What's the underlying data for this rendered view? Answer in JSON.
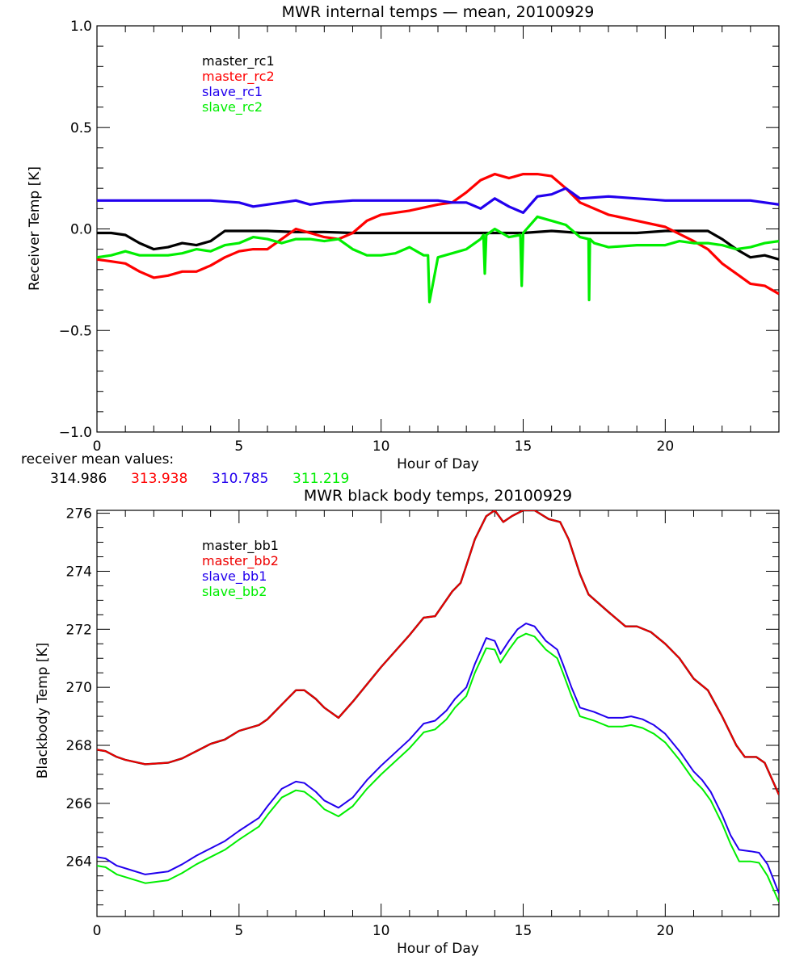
{
  "chart_data": [
    {
      "type": "line",
      "title": "MWR internal temps — mean, 20100929",
      "xlabel": "Hour of Day",
      "ylabel": "Receiver Temp [K]",
      "xlim": [
        0,
        24
      ],
      "ylim": [
        -1.0,
        1.0
      ],
      "xticks": [
        0,
        5,
        10,
        15,
        20
      ],
      "xtick_labels": [
        "0",
        "5",
        "10",
        "15",
        "20"
      ],
      "yticks": [
        -1.0,
        -0.5,
        0.0,
        0.5,
        1.0
      ],
      "ytick_labels": [
        "−1.0",
        "−0.5",
        "0.0",
        "0.5",
        "1.0"
      ],
      "grid": false,
      "legend_position": "top-left",
      "series": [
        {
          "name": "master_rc1",
          "color": "#000000",
          "x": [
            0,
            0.5,
            1,
            1.5,
            2,
            2.5,
            3,
            3.5,
            4,
            4.5,
            5,
            6,
            7,
            8,
            9,
            10,
            11,
            12,
            13,
            14,
            15,
            16,
            17,
            18,
            19,
            20,
            21,
            21.5,
            22,
            22.5,
            23,
            23.5,
            24
          ],
          "y": [
            -0.02,
            -0.02,
            -0.03,
            -0.07,
            -0.1,
            -0.09,
            -0.07,
            -0.08,
            -0.06,
            -0.01,
            -0.01,
            -0.01,
            -0.015,
            -0.015,
            -0.02,
            -0.02,
            -0.02,
            -0.02,
            -0.02,
            -0.02,
            -0.02,
            -0.01,
            -0.02,
            -0.02,
            -0.02,
            -0.01,
            -0.01,
            -0.01,
            -0.05,
            -0.1,
            -0.14,
            -0.13,
            -0.15
          ]
        },
        {
          "name": "master_rc2",
          "color": "#ff0000",
          "x": [
            0,
            0.5,
            1,
            1.5,
            2,
            2.5,
            3,
            3.5,
            4,
            4.5,
            5,
            5.5,
            6,
            6.5,
            7,
            7.5,
            8,
            8.5,
            9,
            9.5,
            10,
            11,
            12,
            12.5,
            13,
            13.5,
            14,
            14.5,
            15,
            15.5,
            16,
            16.5,
            17,
            18,
            19,
            20,
            21,
            21.5,
            22,
            22.5,
            23,
            23.5,
            24
          ],
          "y": [
            -0.15,
            -0.16,
            -0.17,
            -0.21,
            -0.24,
            -0.23,
            -0.21,
            -0.21,
            -0.18,
            -0.14,
            -0.11,
            -0.1,
            -0.1,
            -0.05,
            0.0,
            -0.02,
            -0.04,
            -0.05,
            -0.02,
            0.04,
            0.07,
            0.09,
            0.12,
            0.13,
            0.18,
            0.24,
            0.27,
            0.25,
            0.27,
            0.27,
            0.26,
            0.2,
            0.13,
            0.07,
            0.04,
            0.01,
            -0.06,
            -0.1,
            -0.17,
            -0.22,
            -0.27,
            -0.28,
            -0.32
          ]
        },
        {
          "name": "slave_rc1",
          "color": "#2200ee",
          "x": [
            0,
            1,
            2,
            3,
            4,
            5,
            5.5,
            6,
            7,
            7.5,
            8,
            9,
            10,
            11,
            12,
            12.5,
            13,
            13.5,
            14,
            14.5,
            15,
            15.5,
            16,
            16.5,
            17,
            18,
            19,
            20,
            21,
            22,
            23,
            24
          ],
          "y": [
            0.14,
            0.14,
            0.14,
            0.14,
            0.14,
            0.13,
            0.11,
            0.12,
            0.14,
            0.12,
            0.13,
            0.14,
            0.14,
            0.14,
            0.14,
            0.13,
            0.13,
            0.1,
            0.15,
            0.11,
            0.08,
            0.16,
            0.17,
            0.2,
            0.15,
            0.16,
            0.15,
            0.14,
            0.14,
            0.14,
            0.14,
            0.12
          ]
        },
        {
          "name": "slave_rc2",
          "color": "#00ee00",
          "x": [
            0,
            0.5,
            1,
            1.5,
            2,
            2.5,
            3,
            3.5,
            4,
            4.5,
            5,
            5.5,
            6,
            6.5,
            7,
            7.5,
            8,
            8.5,
            9,
            9.5,
            10,
            10.5,
            11,
            11.5,
            11.65,
            11.7,
            12,
            12.5,
            13,
            13.5,
            13.6,
            13.65,
            13.7,
            14,
            14.5,
            14.9,
            14.95,
            15.0,
            15.5,
            16,
            16.5,
            17,
            17.3,
            17.32,
            17.35,
            17.5,
            18,
            19,
            20,
            20.5,
            21,
            21.5,
            22,
            22.5,
            23,
            23.5,
            24
          ],
          "y": [
            -0.14,
            -0.13,
            -0.11,
            -0.13,
            -0.13,
            -0.13,
            -0.12,
            -0.1,
            -0.11,
            -0.08,
            -0.07,
            -0.04,
            -0.05,
            -0.07,
            -0.05,
            -0.05,
            -0.06,
            -0.05,
            -0.1,
            -0.13,
            -0.13,
            -0.12,
            -0.09,
            -0.13,
            -0.13,
            -0.36,
            -0.14,
            -0.12,
            -0.1,
            -0.05,
            -0.03,
            -0.22,
            -0.03,
            0.0,
            -0.04,
            -0.03,
            -0.28,
            -0.02,
            0.06,
            0.04,
            0.02,
            -0.04,
            -0.05,
            -0.35,
            -0.05,
            -0.07,
            -0.09,
            -0.08,
            -0.08,
            -0.06,
            -0.07,
            -0.07,
            -0.08,
            -0.1,
            -0.09,
            -0.07,
            -0.06
          ]
        }
      ],
      "annotation": {
        "label": "receiver mean values:",
        "values": [
          {
            "text": "314.986",
            "color": "#000000"
          },
          {
            "text": "313.938",
            "color": "#ff0000"
          },
          {
            "text": "310.785",
            "color": "#2200ee"
          },
          {
            "text": "311.219",
            "color": "#00ee00"
          }
        ]
      }
    },
    {
      "type": "line",
      "title": "MWR black body temps, 20100929",
      "xlabel": "Hour of Day",
      "ylabel": "Blackbody Temp [K]",
      "xlim": [
        0,
        24
      ],
      "ylim": [
        262.1,
        276.1
      ],
      "xticks": [
        0,
        5,
        10,
        15,
        20
      ],
      "xtick_labels": [
        "0",
        "5",
        "10",
        "15",
        "20"
      ],
      "yticks": [
        264,
        266,
        268,
        270,
        272,
        274,
        276
      ],
      "ytick_labels": [
        "264",
        "266",
        "268",
        "270",
        "272",
        "274",
        "276"
      ],
      "grid": false,
      "legend_position": "top-left",
      "series": [
        {
          "name": "master_bb1",
          "color": "#000000",
          "x": [
            0,
            0.3,
            0.7,
            1,
            1.7,
            2.5,
            3,
            4,
            4.5,
            5,
            5.7,
            6,
            6.5,
            7,
            7.3,
            7.7,
            8,
            8.5,
            9,
            10,
            11,
            11.5,
            11.9,
            12.5,
            12.8,
            13,
            13.3,
            13.7,
            14,
            14.3,
            14.6,
            15,
            15.4,
            15.9,
            16.3,
            16.6,
            17,
            17.3,
            18,
            18.6,
            19,
            19.5,
            20,
            20.5,
            21,
            21.5,
            22,
            22.5,
            22.8,
            23.2,
            23.5,
            24
          ],
          "y": [
            267.85,
            267.8,
            267.6,
            267.5,
            267.35,
            267.4,
            267.55,
            268.05,
            268.2,
            268.5,
            268.7,
            268.9,
            269.4,
            269.9,
            269.9,
            269.6,
            269.3,
            268.95,
            269.5,
            270.7,
            271.8,
            272.4,
            272.45,
            273.3,
            273.6,
            274.2,
            275.1,
            275.9,
            276.1,
            275.7,
            275.9,
            276.1,
            276.1,
            275.8,
            275.7,
            275.1,
            273.9,
            273.2,
            272.6,
            272.1,
            272.1,
            271.9,
            271.5,
            271.0,
            270.3,
            269.9,
            269.0,
            268.0,
            267.6,
            267.6,
            267.4,
            266.3
          ]
        },
        {
          "name": "master_bb2",
          "color": "#ee0000",
          "x": [
            0,
            0.3,
            0.7,
            1,
            1.7,
            2.5,
            3,
            4,
            4.5,
            5,
            5.7,
            6,
            6.5,
            7,
            7.3,
            7.7,
            8,
            8.5,
            9,
            10,
            11,
            11.5,
            11.9,
            12.5,
            12.8,
            13,
            13.3,
            13.7,
            14,
            14.3,
            14.6,
            15,
            15.4,
            15.9,
            16.3,
            16.6,
            17,
            17.3,
            18,
            18.6,
            19,
            19.5,
            20,
            20.5,
            21,
            21.5,
            22,
            22.5,
            22.8,
            23.2,
            23.5,
            24
          ],
          "y": [
            267.85,
            267.8,
            267.6,
            267.5,
            267.35,
            267.4,
            267.55,
            268.05,
            268.2,
            268.5,
            268.7,
            268.9,
            269.4,
            269.9,
            269.9,
            269.6,
            269.3,
            268.95,
            269.5,
            270.7,
            271.8,
            272.4,
            272.45,
            273.3,
            273.6,
            274.2,
            275.1,
            275.9,
            276.1,
            275.7,
            275.9,
            276.1,
            276.1,
            275.8,
            275.7,
            275.1,
            273.9,
            273.2,
            272.6,
            272.1,
            272.1,
            271.9,
            271.5,
            271.0,
            270.3,
            269.9,
            269.0,
            268.0,
            267.6,
            267.6,
            267.4,
            266.3
          ]
        },
        {
          "name": "slave_bb1",
          "color": "#2200ee",
          "x": [
            0,
            0.3,
            0.7,
            1.2,
            1.7,
            2.5,
            3,
            3.5,
            4,
            4.5,
            5,
            5.7,
            6,
            6.5,
            7,
            7.3,
            7.7,
            8,
            8.5,
            9,
            9.5,
            10,
            11,
            11.5,
            11.9,
            12.3,
            12.6,
            13,
            13.3,
            13.7,
            14,
            14.2,
            14.5,
            14.8,
            15.1,
            15.4,
            15.8,
            16.2,
            16.4,
            16.7,
            17,
            17.5,
            18,
            18.5,
            18.8,
            19.2,
            19.6,
            20,
            20.5,
            21,
            21.3,
            21.6,
            22,
            22.3,
            22.6,
            23,
            23.3,
            23.6,
            24
          ],
          "y": [
            264.15,
            264.1,
            263.85,
            263.7,
            263.55,
            263.65,
            263.9,
            264.2,
            264.45,
            264.7,
            265.05,
            265.5,
            265.9,
            266.5,
            266.75,
            266.7,
            266.4,
            266.1,
            265.85,
            266.2,
            266.8,
            267.3,
            268.2,
            268.75,
            268.85,
            269.2,
            269.6,
            270.0,
            270.8,
            271.7,
            271.6,
            271.15,
            271.6,
            272.0,
            272.2,
            272.1,
            271.6,
            271.3,
            270.8,
            270.0,
            269.3,
            269.15,
            268.95,
            268.95,
            269.0,
            268.9,
            268.7,
            268.4,
            267.8,
            267.1,
            266.8,
            266.4,
            265.6,
            264.9,
            264.4,
            264.35,
            264.3,
            263.9,
            262.9
          ]
        },
        {
          "name": "slave_bb2",
          "color": "#00ee00",
          "x": [
            0,
            0.3,
            0.7,
            1.2,
            1.7,
            2.5,
            3,
            3.5,
            4,
            4.5,
            5,
            5.7,
            6,
            6.5,
            7,
            7.3,
            7.7,
            8,
            8.5,
            9,
            9.5,
            10,
            11,
            11.5,
            11.9,
            12.3,
            12.6,
            13,
            13.3,
            13.7,
            14,
            14.2,
            14.5,
            14.8,
            15.1,
            15.4,
            15.8,
            16.2,
            16.4,
            16.7,
            17,
            17.5,
            18,
            18.5,
            18.8,
            19.2,
            19.6,
            20,
            20.5,
            21,
            21.3,
            21.6,
            22,
            22.3,
            22.6,
            23,
            23.3,
            23.6,
            24
          ],
          "y": [
            263.85,
            263.8,
            263.55,
            263.4,
            263.25,
            263.35,
            263.6,
            263.9,
            264.15,
            264.4,
            264.75,
            265.2,
            265.6,
            266.2,
            266.45,
            266.4,
            266.1,
            265.8,
            265.55,
            265.9,
            266.5,
            267.0,
            267.9,
            268.45,
            268.55,
            268.9,
            269.3,
            269.7,
            270.5,
            271.35,
            271.3,
            270.85,
            271.3,
            271.7,
            271.85,
            271.75,
            271.3,
            271.0,
            270.5,
            269.7,
            269.0,
            268.85,
            268.65,
            268.65,
            268.7,
            268.6,
            268.4,
            268.1,
            267.5,
            266.8,
            266.5,
            266.1,
            265.3,
            264.6,
            264.0,
            264.0,
            263.95,
            263.5,
            262.6
          ]
        }
      ]
    }
  ]
}
